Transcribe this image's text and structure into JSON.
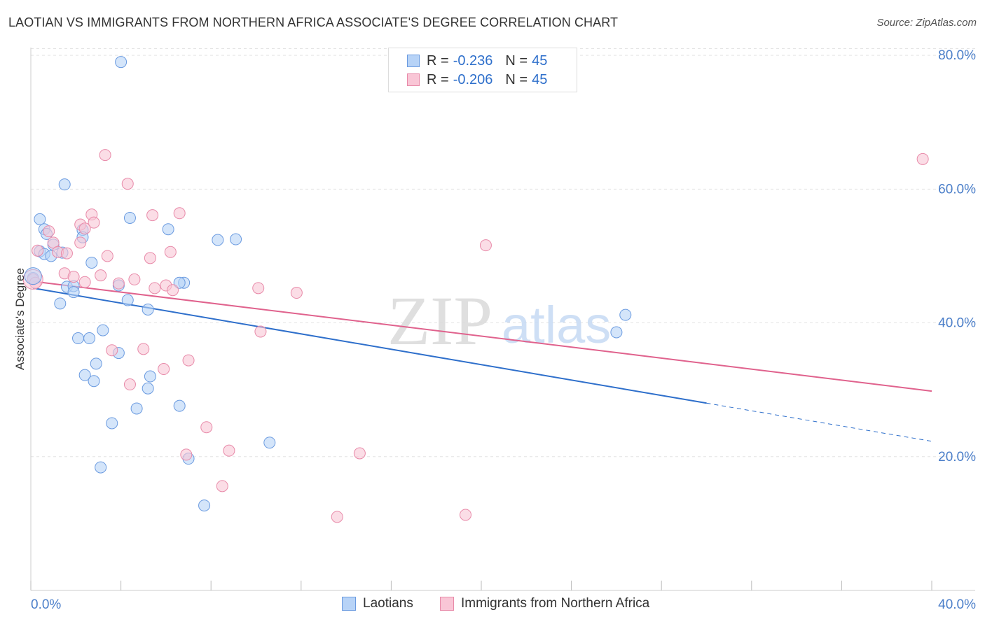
{
  "title": "LAOTIAN VS IMMIGRANTS FROM NORTHERN AFRICA ASSOCIATE'S DEGREE CORRELATION CHART",
  "source": "Source: ZipAtlas.com",
  "watermark": {
    "zip": "ZIP",
    "atlas": "atlas"
  },
  "legend": {
    "rows": [
      {
        "r_label": "R =",
        "r_value": "-0.236",
        "n_label": "N =",
        "n_value": "45",
        "fill": "#b7d3f7",
        "stroke": "#6b9be0"
      },
      {
        "r_label": "R =",
        "r_value": "-0.206",
        "n_label": "N =",
        "n_value": "45",
        "fill": "#f9c6d6",
        "stroke": "#e88aa9"
      }
    ]
  },
  "bottom_legend": [
    {
      "label": "Laotians",
      "fill": "#b7d3f7",
      "stroke": "#6b9be0"
    },
    {
      "label": "Immigrants from Northern Africa",
      "fill": "#f9c6d6",
      "stroke": "#e88aa9"
    }
  ],
  "chart_data": {
    "type": "scatter",
    "ylabel": "Associate's Degree",
    "xlabel": "",
    "xlim": [
      0,
      40
    ],
    "ylim": [
      0,
      82
    ],
    "x_tick_labels": [
      {
        "value": 0,
        "label": "0.0%"
      },
      {
        "value": 40,
        "label": "40.0%"
      }
    ],
    "y_tick_labels": [
      {
        "value": 20,
        "label": "20.0%"
      },
      {
        "value": 40,
        "label": "40.0%"
      },
      {
        "value": 60,
        "label": "60.0%"
      },
      {
        "value": 80,
        "label": "80.0%"
      }
    ],
    "grid": true,
    "series": [
      {
        "name": "Laotians",
        "color": "#6b9be0",
        "fill": "#b7d3f7",
        "line_color": "#2e6fcb",
        "trend": {
          "x0": 0.1,
          "y0": 45.2,
          "x1": 30.0,
          "y1": 28.0,
          "dash_to_x": 40.0,
          "dash_to_y": 22.3
        },
        "points": [
          [
            4.0,
            79.0
          ],
          [
            1.5,
            60.7
          ],
          [
            0.4,
            55.5
          ],
          [
            4.4,
            55.7
          ],
          [
            0.6,
            54.0
          ],
          [
            0.7,
            53.3
          ],
          [
            2.3,
            53.9
          ],
          [
            6.1,
            54.0
          ],
          [
            2.3,
            52.8
          ],
          [
            8.3,
            52.4
          ],
          [
            9.1,
            52.5
          ],
          [
            0.4,
            50.7
          ],
          [
            1.0,
            51.7
          ],
          [
            0.6,
            50.3
          ],
          [
            0.9,
            50.0
          ],
          [
            1.4,
            50.5
          ],
          [
            2.7,
            49.0
          ],
          [
            0.1,
            46.7
          ],
          [
            1.6,
            45.4
          ],
          [
            1.9,
            45.5
          ],
          [
            1.9,
            44.6
          ],
          [
            3.9,
            45.6
          ],
          [
            6.8,
            46.0
          ],
          [
            1.3,
            42.9
          ],
          [
            4.3,
            43.4
          ],
          [
            5.2,
            42.0
          ],
          [
            3.2,
            38.9
          ],
          [
            2.1,
            37.7
          ],
          [
            2.6,
            37.7
          ],
          [
            3.9,
            35.5
          ],
          [
            2.9,
            33.9
          ],
          [
            2.4,
            32.2
          ],
          [
            2.8,
            31.3
          ],
          [
            5.3,
            32.0
          ],
          [
            5.2,
            30.2
          ],
          [
            4.7,
            27.2
          ],
          [
            6.6,
            27.6
          ],
          [
            3.6,
            25.0
          ],
          [
            10.6,
            22.1
          ],
          [
            7.0,
            19.7
          ],
          [
            3.1,
            18.4
          ],
          [
            7.7,
            12.7
          ],
          [
            26.0,
            38.6
          ],
          [
            26.4,
            41.2
          ],
          [
            6.6,
            46.0
          ]
        ]
      },
      {
        "name": "Immigrants from Northern Africa",
        "color": "#e88aa9",
        "fill": "#f9c6d6",
        "line_color": "#e0628d",
        "trend": {
          "x0": 0.1,
          "y0": 46.2,
          "x1": 40.0,
          "y1": 29.8
        },
        "points": [
          [
            39.6,
            64.5
          ],
          [
            3.3,
            65.1
          ],
          [
            4.3,
            60.8
          ],
          [
            2.7,
            56.2
          ],
          [
            5.4,
            56.1
          ],
          [
            6.6,
            56.4
          ],
          [
            2.8,
            55.0
          ],
          [
            2.2,
            54.7
          ],
          [
            2.4,
            54.1
          ],
          [
            0.8,
            53.7
          ],
          [
            1.0,
            52.0
          ],
          [
            0.3,
            50.8
          ],
          [
            1.2,
            50.6
          ],
          [
            1.6,
            50.4
          ],
          [
            3.4,
            50.0
          ],
          [
            5.3,
            49.7
          ],
          [
            6.2,
            50.6
          ],
          [
            20.2,
            51.6
          ],
          [
            1.5,
            47.4
          ],
          [
            1.9,
            46.9
          ],
          [
            0.1,
            46.5
          ],
          [
            3.1,
            47.1
          ],
          [
            2.4,
            46.1
          ],
          [
            4.6,
            46.5
          ],
          [
            5.5,
            45.2
          ],
          [
            6.0,
            45.6
          ],
          [
            6.3,
            44.9
          ],
          [
            10.1,
            45.2
          ],
          [
            11.8,
            44.5
          ],
          [
            3.9,
            45.9
          ],
          [
            10.2,
            38.7
          ],
          [
            3.6,
            35.9
          ],
          [
            5.0,
            36.1
          ],
          [
            7.0,
            34.4
          ],
          [
            5.9,
            33.1
          ],
          [
            4.4,
            30.8
          ],
          [
            7.8,
            24.4
          ],
          [
            8.8,
            20.9
          ],
          [
            6.9,
            20.3
          ],
          [
            14.6,
            20.5
          ],
          [
            8.5,
            15.6
          ],
          [
            13.6,
            11.0
          ],
          [
            19.3,
            11.3
          ],
          [
            0.2,
            46.0
          ],
          [
            2.2,
            52.0
          ]
        ]
      }
    ]
  }
}
